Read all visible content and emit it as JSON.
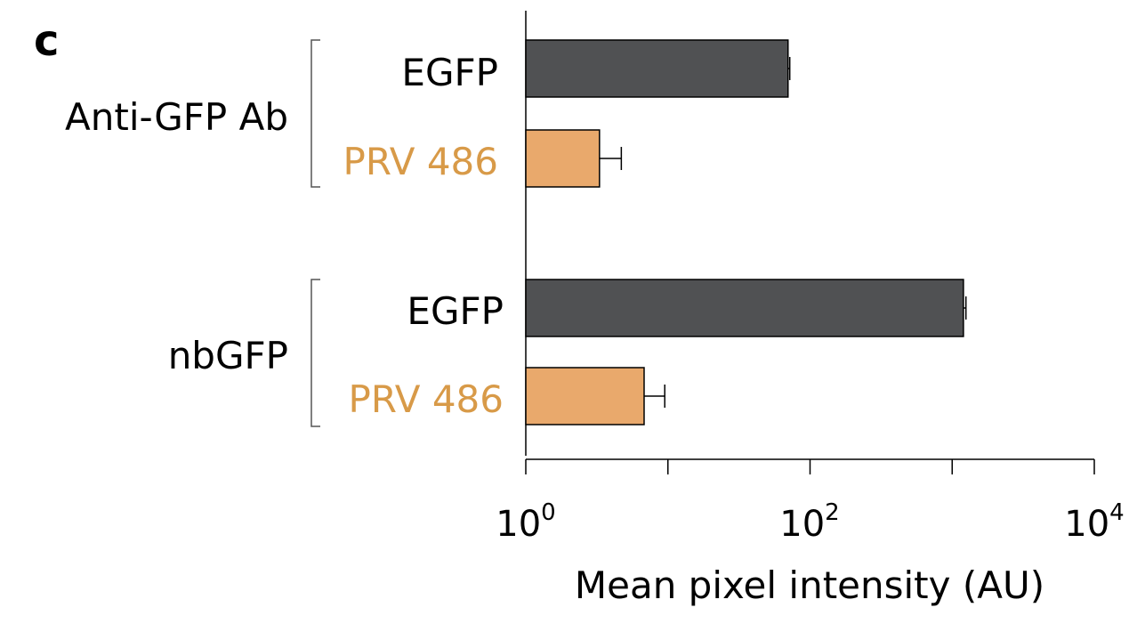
{
  "chart_data": {
    "type": "bar",
    "orientation": "horizontal",
    "panel_label": "c",
    "groups": [
      {
        "name": "Anti-GFP Ab",
        "bars": [
          {
            "label": "EGFP",
            "value": 70,
            "error": 2,
            "color": "#505153"
          },
          {
            "label": "PRV 486",
            "value": 3.3,
            "error": 1.4,
            "color": "#E9A96C"
          }
        ]
      },
      {
        "name": "nbGFP",
        "bars": [
          {
            "label": "EGFP",
            "value": 1200,
            "error": 50,
            "color": "#505153"
          },
          {
            "label": "PRV 486",
            "value": 6.8,
            "error": 2.7,
            "color": "#E9A96C"
          }
        ]
      }
    ],
    "xaxis": {
      "label": "Mean pixel intensity (AU)",
      "scale": "log",
      "range": [
        1,
        10000
      ],
      "tick_labels": [
        {
          "base": "10",
          "exp": "0",
          "value": 1
        },
        {
          "base": "10",
          "exp": "2",
          "value": 100
        },
        {
          "base": "10",
          "exp": "4",
          "value": 10000
        }
      ],
      "minor_ticks": [
        10,
        1000
      ]
    },
    "colors": {
      "egfp_bar": "#505153",
      "prv_bar": "#E9A96C",
      "prv_label": "#D89A48",
      "axis": "#000000",
      "bracket": "#555555"
    },
    "legend": "none",
    "grid": false
  }
}
